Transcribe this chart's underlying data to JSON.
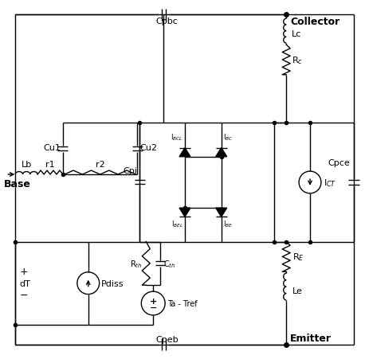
{
  "bg_color": "#ffffff",
  "line_color": "#000000",
  "labels": {
    "collector": "Collector",
    "emitter": "Emitter",
    "base": "Base",
    "Lc": "Lc",
    "Rc": "R$_c$",
    "Re": "R$_E$",
    "Le": "Le",
    "Lb": "Lb",
    "r1": "r1",
    "r2": "r2",
    "Cu1": "Cu1",
    "Cu2": "Cu2",
    "Cpi": "Cpi",
    "Cpbc": "Cpbc",
    "Cpce": "Cpce",
    "Cpeb": "Cpeb",
    "ICT": "I$_{CT}$",
    "Pdiss": "Pdiss",
    "Rth": "R$_{th}$",
    "Cth": "C$_{th}$",
    "Ta_Tref": "Ta - Tref",
    "dT": "dT",
    "IBCL": "I$_{BCL}$",
    "IBC": "I$_{BC}$",
    "IBEL": "I$_{BEL}$",
    "IBE": "I$_{BE}$"
  }
}
